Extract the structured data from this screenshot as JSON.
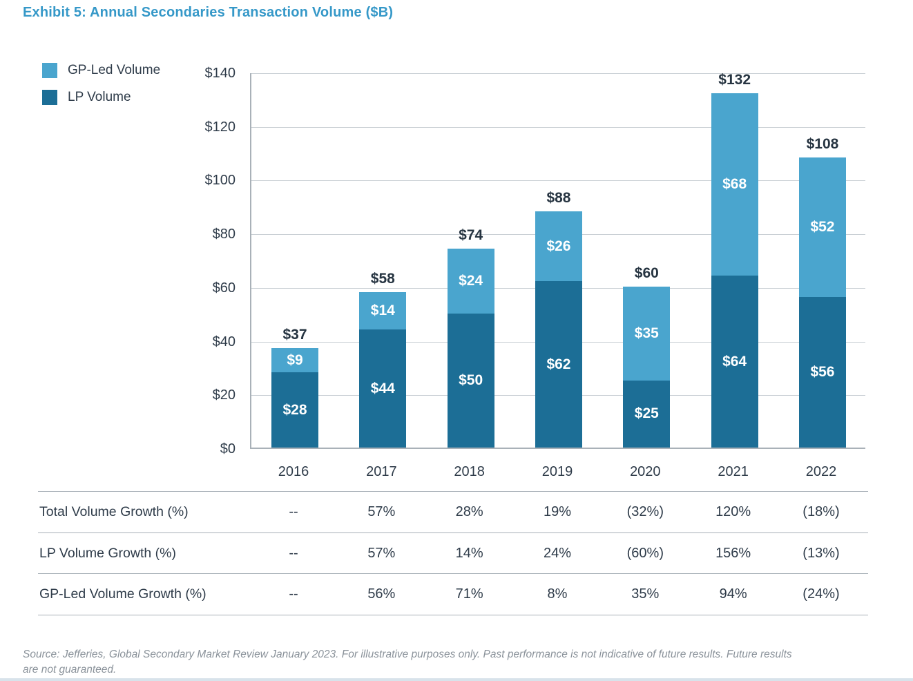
{
  "title": "Exhibit 5: Annual Secondaries Transaction Volume ($B)",
  "legend": {
    "items": [
      {
        "label": "GP-Led Volume",
        "color": "#4AA5CE"
      },
      {
        "label": "LP Volume",
        "color": "#1C6E96"
      }
    ]
  },
  "chart_data": {
    "type": "bar",
    "stacked": true,
    "title": "Exhibit 5: Annual Secondaries Transaction Volume ($B)",
    "categories": [
      "2016",
      "2017",
      "2018",
      "2019",
      "2020",
      "2021",
      "2022"
    ],
    "series": [
      {
        "name": "LP Volume",
        "color": "#1C6E96",
        "values": [
          28,
          44,
          50,
          62,
          25,
          64,
          56
        ],
        "labels": [
          "$28",
          "$44",
          "$50",
          "$62",
          "$25",
          "$64",
          "$56"
        ]
      },
      {
        "name": "GP-Led Volume",
        "color": "#4AA5CE",
        "values": [
          9,
          14,
          24,
          26,
          35,
          68,
          52
        ],
        "labels": [
          "$9",
          "$14",
          "$24",
          "$26",
          "$35",
          "$68",
          "$52"
        ]
      }
    ],
    "totals": [
      37,
      58,
      74,
      88,
      60,
      132,
      108
    ],
    "total_labels": [
      "$37",
      "$58",
      "$74",
      "$88",
      "$60",
      "$132",
      "$108"
    ],
    "xlabel": "",
    "ylabel": "",
    "ylim": [
      0,
      140
    ],
    "y_tick_labels": [
      "$140",
      "$120",
      "$100",
      "$80",
      "$60",
      "$40",
      "$20",
      "$0"
    ],
    "grid": true,
    "legend_position": "top-left"
  },
  "table": {
    "rows": [
      {
        "label": "Total Volume Growth (%)",
        "values": [
          "--",
          "57%",
          "28%",
          "19%",
          "(32%)",
          "120%",
          "(18%)"
        ]
      },
      {
        "label": "LP Volume Growth (%)",
        "values": [
          "--",
          "57%",
          "14%",
          "24%",
          "(60%)",
          "156%",
          "(13%)"
        ]
      },
      {
        "label": "GP-Led Volume Growth (%)",
        "values": [
          "--",
          "56%",
          "71%",
          "8%",
          "35%",
          "94%",
          "(24%)"
        ]
      }
    ]
  },
  "source": {
    "line1": "Source: Jefferies, Global Secondary Market Review January 2023. For illustrative purposes only. Past performance is not indicative of future results. Future results",
    "line2": "are  not guaranteed."
  },
  "colors": {
    "title": "#3598C8",
    "gp_led": "#4AA5CE",
    "lp": "#1C6E96",
    "axis_text": "#2E3B49",
    "total_label": "#263441",
    "segment_label": "#FFFFFF",
    "gridline": "#C9CFD4",
    "axis_line": "#A9B1B8",
    "table_rule": "#A5AEB5",
    "table_text": "#2E3B49",
    "source_text": "#8A929A",
    "bottom_border": "#D8E3EB"
  }
}
